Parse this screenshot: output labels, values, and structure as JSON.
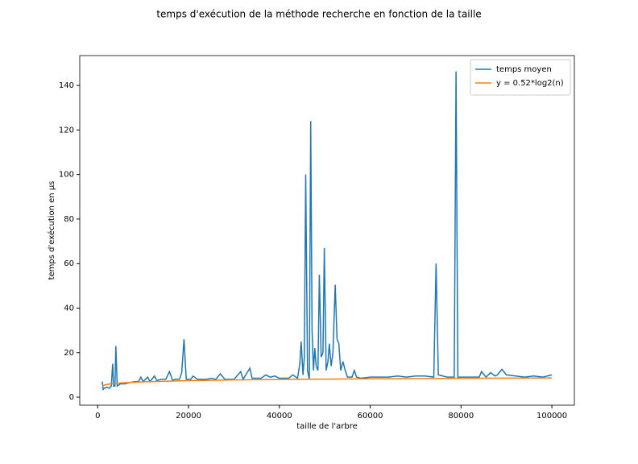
{
  "chart_data": {
    "type": "line",
    "title": "temps d'exécution de la méthode recherche en fonction de la taille",
    "x_label": "taille de l'arbre",
    "y_label": "temps d'exécution en µs",
    "xlim": [
      -3950,
      104950
    ],
    "ylim": [
      -3.6,
      153.4
    ],
    "xticks": [
      0,
      20000,
      40000,
      60000,
      80000,
      100000
    ],
    "yticks": [
      0,
      20,
      40,
      60,
      80,
      100,
      120,
      140
    ],
    "grid": false,
    "legend": "upper right",
    "series": [
      {
        "name": "temps moyen",
        "color": "#1f77b4",
        "x": [
          1000,
          1200,
          1500,
          2000,
          2500,
          3000,
          3300,
          3500,
          3800,
          4000,
          4300,
          5000,
          6000,
          7000,
          8000,
          9000,
          9500,
          10000,
          11000,
          11500,
          12500,
          13000,
          14000,
          15000,
          15800,
          16500,
          17000,
          18000,
          18500,
          19000,
          19500,
          20500,
          21000,
          22000,
          24000,
          25000,
          26000,
          27000,
          28000,
          30000,
          31500,
          32000,
          33500,
          34000,
          36000,
          37000,
          38000,
          39000,
          40000,
          42000,
          43000,
          44000,
          44500,
          44800,
          45200,
          45500,
          45800,
          46200,
          46600,
          46900,
          47200,
          47500,
          47800,
          48100,
          48500,
          48800,
          49200,
          49600,
          49900,
          50300,
          50700,
          51000,
          51400,
          51800,
          52300,
          52700,
          53100,
          53500,
          54000,
          54500,
          55000,
          56000,
          56500,
          57000,
          58000,
          60000,
          62000,
          64000,
          66000,
          68000,
          70000,
          72000,
          74000,
          74500,
          75000,
          76000,
          77000,
          78500,
          78900,
          79300,
          80000,
          82000,
          84000,
          84500,
          85500,
          86500,
          87500,
          88000,
          89000,
          90000,
          92000,
          94000,
          96000,
          98000,
          100000
        ],
        "values": [
          7,
          3.5,
          4,
          4.5,
          4,
          5,
          15,
          5,
          5,
          23,
          5,
          6,
          6,
          6.5,
          7,
          7,
          9,
          7,
          9,
          7,
          9.5,
          7.5,
          8,
          8,
          11.5,
          7.5,
          8,
          8,
          11,
          26,
          8,
          8,
          9.5,
          8,
          8,
          8.5,
          8,
          10.5,
          8,
          8,
          11.5,
          8,
          13,
          8.5,
          8.5,
          10,
          9,
          9.5,
          8.5,
          8.5,
          10,
          8.5,
          15,
          25,
          10,
          18,
          100,
          12,
          8,
          124,
          30,
          12,
          22,
          14,
          12,
          55,
          18,
          20,
          67,
          12,
          16,
          24,
          14,
          20,
          50.5,
          26,
          24,
          12,
          16,
          12,
          9,
          9,
          12,
          9,
          8.5,
          9,
          9,
          9,
          9.5,
          9,
          9.5,
          9.5,
          9,
          60,
          10,
          9.5,
          9,
          9,
          146.3,
          9,
          9,
          9,
          9,
          11.5,
          9,
          11,
          9.5,
          10,
          12.5,
          10,
          9.5,
          9,
          9.5,
          9,
          10
        ]
      },
      {
        "name": "y = 0.52*log2(n)",
        "color": "#ff7f0e",
        "x": [
          1000,
          2000,
          3000,
          5000,
          10000,
          20000,
          30000,
          40000,
          50000,
          60000,
          70000,
          80000,
          90000,
          100000
        ],
        "values": [
          5.18,
          5.7,
          6.01,
          6.39,
          6.91,
          7.43,
          7.73,
          7.95,
          8.12,
          8.25,
          8.37,
          8.47,
          8.56,
          8.64
        ]
      }
    ]
  }
}
